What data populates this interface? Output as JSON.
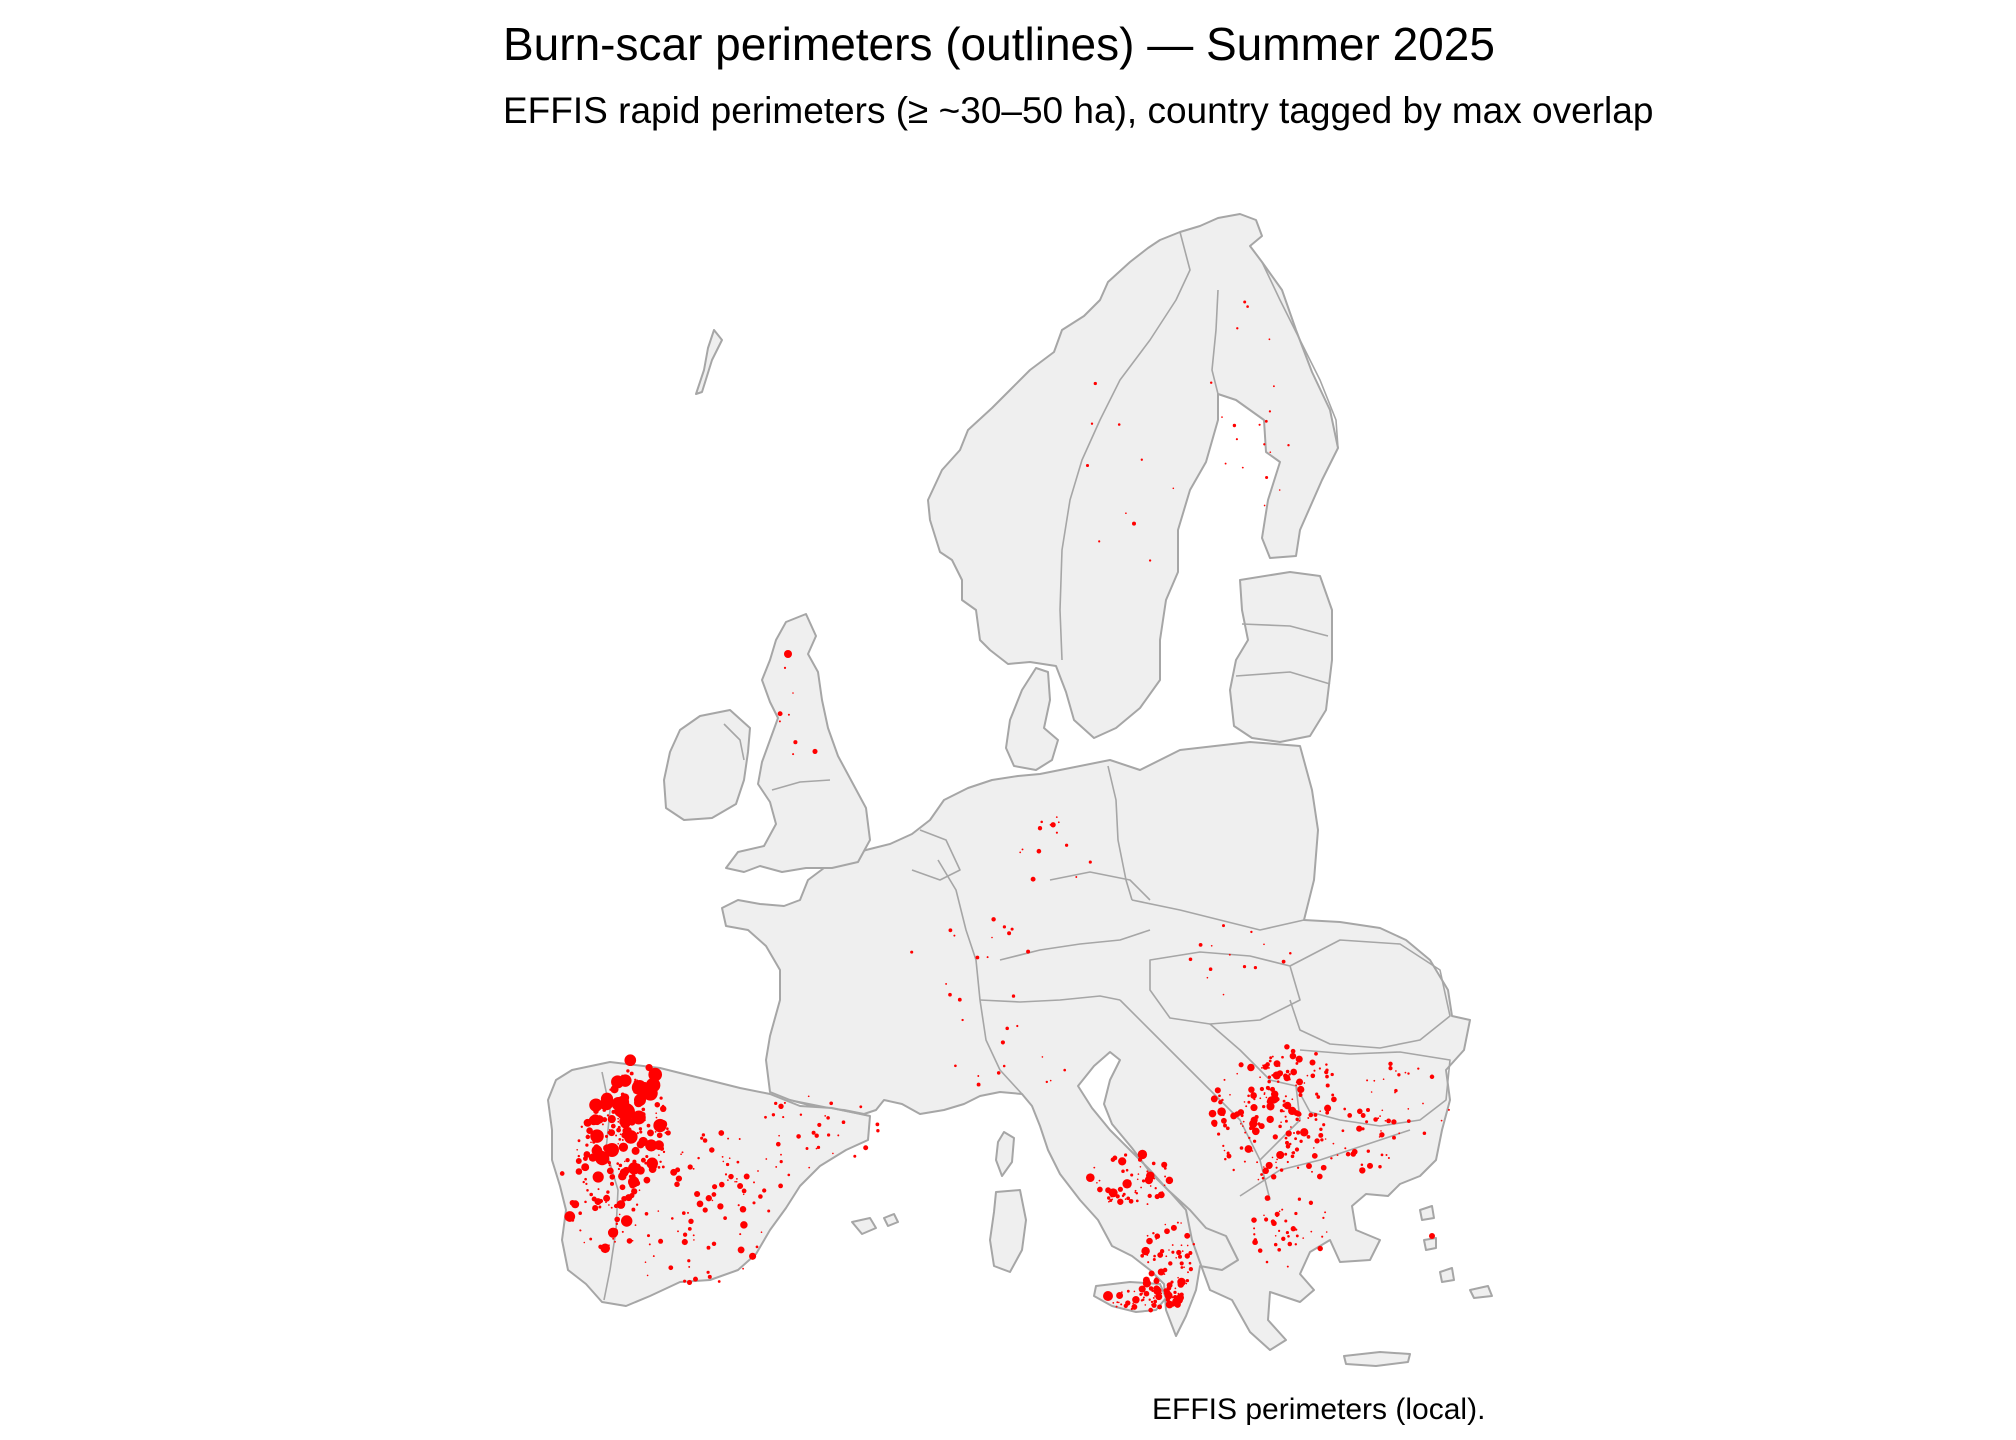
{
  "title": "Burn-scar perimeters (outlines) — Summer 2025",
  "subtitle": "EFFIS rapid perimeters (≥ ~30–50 ha), country tagged by max overlap",
  "caption": "EFFIS perimeters (local).",
  "colors": {
    "land_fill": "#efefef",
    "country_outline": "#a6a6a6",
    "burn_scar": "#ff0000",
    "background": "#ffffff"
  }
}
